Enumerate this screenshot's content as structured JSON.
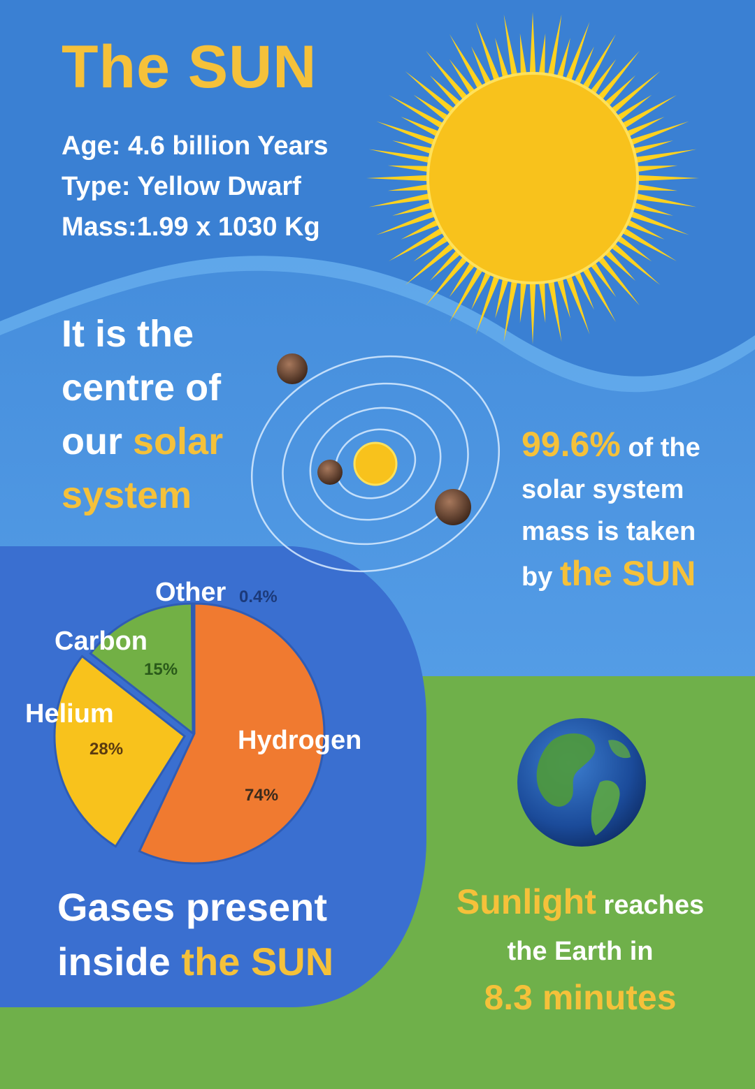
{
  "colors": {
    "sky_top": "#3d86d8",
    "sky_bottom": "#5ea8ec",
    "grass": "#6fb04a",
    "pie_panel": "#3a6fd0",
    "sun": "#f8c21c",
    "accent_yellow": "#f5c13a",
    "hydrogen": "#f07a30",
    "helium": "#f8c21c",
    "carbon": "#72b045"
  },
  "header": {
    "title": "The SUN",
    "facts": [
      "Age: 4.6 billion Years",
      "Type: Yellow Dwarf",
      "Mass:1.99 x 1030 Kg"
    ]
  },
  "solar_system": {
    "line1": "It is the",
    "line2": "centre of",
    "line3_white": "our",
    "line3_yellow": "solar",
    "line4_yellow": "system"
  },
  "mass_fact": {
    "percent": "99.6%",
    "rest1": "of the",
    "line2": "solar system",
    "line3": "mass is taken",
    "by": "by",
    "the_sun": "the SUN"
  },
  "gases": {
    "caption_line1": "Gases present",
    "caption_line2_white": "inside",
    "caption_line2_yellow": "the SUN"
  },
  "chart_data": {
    "type": "pie",
    "slices": [
      {
        "label": "Hydrogen",
        "value_label": "74%",
        "value": 74,
        "color": "#f07a30"
      },
      {
        "label": "Helium",
        "value_label": "28%",
        "value": 28,
        "color": "#f8c21c"
      },
      {
        "label": "Carbon",
        "value_label": "15%",
        "value": 15,
        "color": "#72b045"
      },
      {
        "label": "Other",
        "value_label": "0.4%",
        "value": 0.4,
        "color": "#72b045"
      }
    ]
  },
  "sunlight": {
    "word": "Sunlight",
    "rest1": "reaches",
    "line2": "the Earth in",
    "time": "8.3 minutes"
  },
  "icons": {
    "sun": "sun-icon",
    "earth": "earth-icon",
    "orbit": "solar-system-diagram"
  }
}
